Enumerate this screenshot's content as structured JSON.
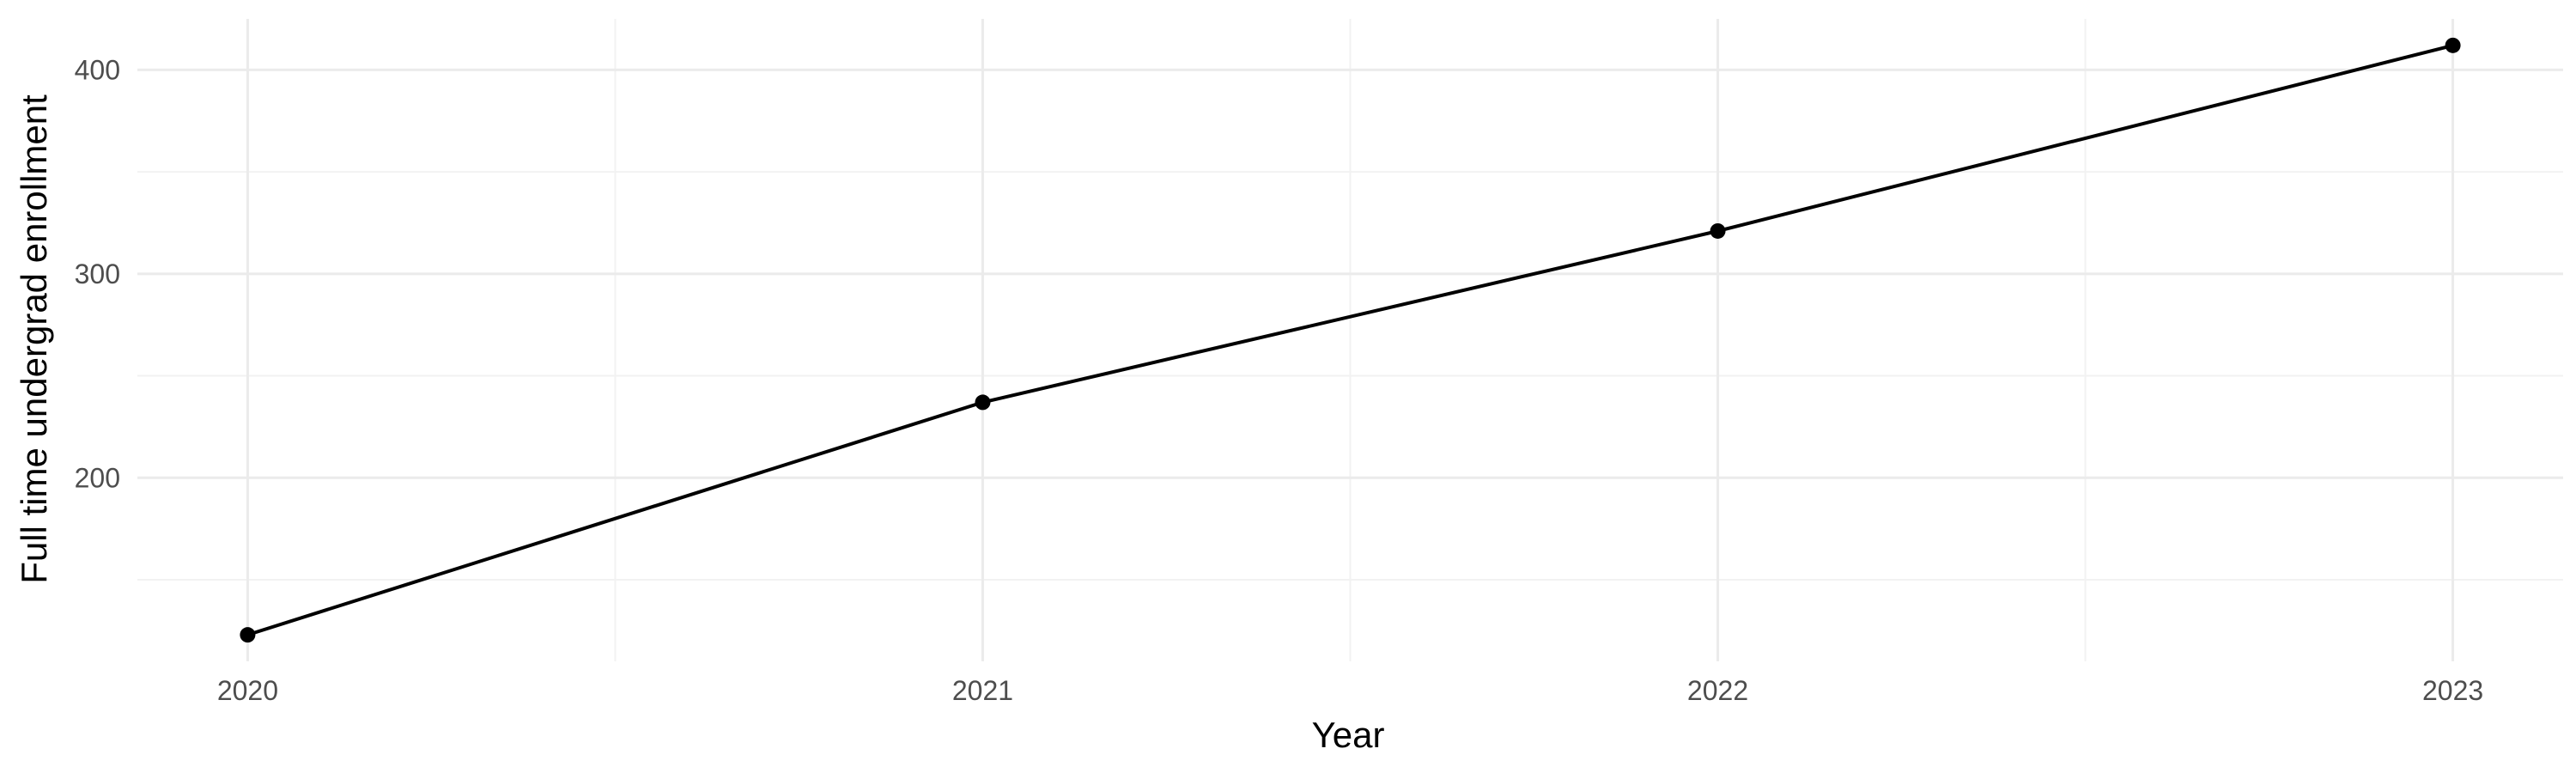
{
  "chart_data": {
    "type": "line",
    "title": "",
    "xlabel": "Year",
    "ylabel": "Full time undergrad enrollment",
    "x": [
      2020,
      2021,
      2022,
      2023
    ],
    "series": [
      {
        "values": [
          123,
          237,
          321,
          412
        ]
      }
    ],
    "xlim": [
      2019.85,
      2023.15
    ],
    "ylim": [
      110,
      425
    ],
    "x_ticks": [
      2020,
      2021,
      2022,
      2023
    ],
    "x_tick_labels": [
      "2020",
      "2021",
      "2022",
      "2023"
    ],
    "x_minor_ticks": [
      2020.5,
      2021.5,
      2022.5
    ],
    "y_ticks": [
      200,
      300,
      400
    ],
    "y_tick_labels": [
      "200",
      "300",
      "400"
    ],
    "y_minor_ticks": [
      150,
      250,
      350
    ],
    "grid": true,
    "legend": "none",
    "colors": {
      "line": "#000000",
      "grid_major": "#ebebeb",
      "grid_minor": "#f2f2f2",
      "tick_text": "#4d4d4d"
    }
  }
}
